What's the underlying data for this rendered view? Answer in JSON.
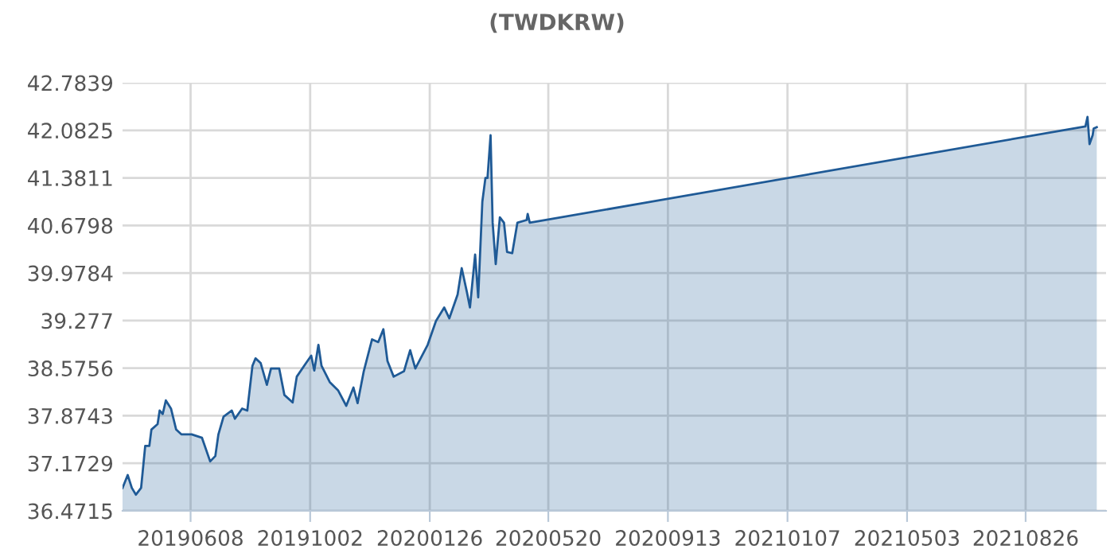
{
  "chart_data": {
    "type": "area",
    "title": "(TWDKRW)",
    "x": [
      "2019-04-03",
      "2019-04-08",
      "2019-04-12",
      "2019-04-16",
      "2019-04-21",
      "2019-04-25",
      "2019-04-29",
      "2019-05-01",
      "2019-05-07",
      "2019-05-09",
      "2019-05-12",
      "2019-05-15",
      "2019-05-20",
      "2019-05-25",
      "2019-05-30",
      "2019-06-09",
      "2019-06-19",
      "2019-06-27",
      "2019-07-02",
      "2019-07-05",
      "2019-07-10",
      "2019-07-18",
      "2019-07-21",
      "2019-07-28",
      "2019-08-02",
      "2019-08-07",
      "2019-08-10",
      "2019-08-15",
      "2019-08-21",
      "2019-08-25",
      "2019-09-02",
      "2019-09-07",
      "2019-09-15",
      "2019-09-19",
      "2019-09-28",
      "2019-10-03",
      "2019-10-06",
      "2019-10-10",
      "2019-10-13",
      "2019-10-21",
      "2019-10-29",
      "2019-11-06",
      "2019-11-13",
      "2019-11-17",
      "2019-11-23",
      "2019-12-01",
      "2019-12-07",
      "2019-12-12",
      "2019-12-16",
      "2019-12-22",
      "2020-01-01",
      "2020-01-07",
      "2020-01-12",
      "2020-01-24",
      "2020-02-01",
      "2020-02-09",
      "2020-02-14",
      "2020-02-22",
      "2020-02-26",
      "2020-03-02",
      "2020-03-05",
      "2020-03-10",
      "2020-03-13",
      "2020-03-17",
      "2020-03-20",
      "2020-03-22",
      "2020-03-25",
      "2020-03-27",
      "2020-03-30",
      "2020-04-03",
      "2020-04-07",
      "2020-04-10",
      "2020-04-15",
      "2020-04-20",
      "2020-04-29",
      "2020-04-30",
      "2020-05-02",
      "2021-10-23",
      "2021-10-25",
      "2021-10-27",
      "2021-10-30",
      "2021-10-31",
      "2021-11-03"
    ],
    "series": [
      {
        "color": "#1f5a96",
        "values": [
          36.81,
          37.0,
          36.81,
          36.71,
          36.81,
          37.43,
          37.43,
          37.67,
          37.75,
          37.95,
          37.9,
          38.1,
          37.98,
          37.67,
          37.6,
          37.6,
          37.55,
          37.2,
          37.28,
          37.6,
          37.86,
          37.95,
          37.83,
          37.98,
          37.95,
          38.61,
          38.72,
          38.65,
          38.33,
          38.57,
          38.57,
          38.18,
          38.07,
          38.45,
          38.65,
          38.76,
          38.54,
          38.92,
          38.61,
          38.37,
          38.25,
          38.02,
          38.29,
          38.06,
          38.53,
          39.0,
          38.96,
          39.15,
          38.68,
          38.45,
          38.53,
          38.84,
          38.57,
          38.92,
          39.27,
          39.47,
          39.31,
          39.66,
          40.05,
          39.7,
          39.47,
          40.25,
          39.62,
          41.03,
          41.38,
          41.38,
          42.01,
          40.72,
          40.11,
          40.8,
          40.72,
          40.29,
          40.27,
          40.72,
          40.76,
          40.85,
          40.72,
          42.14,
          42.28,
          41.88,
          42.01,
          42.11,
          42.13
        ]
      }
    ],
    "xlim": [
      "2019-04-03",
      "2021-11-12"
    ],
    "xticks": [
      {
        "value": "2019-06-08",
        "label": "20190608"
      },
      {
        "value": "2019-10-02",
        "label": "20191002"
      },
      {
        "value": "2020-01-26",
        "label": "20200126"
      },
      {
        "value": "2020-05-20",
        "label": "20200520"
      },
      {
        "value": "2020-09-13",
        "label": "20200913"
      },
      {
        "value": "2021-01-07",
        "label": "20210107"
      },
      {
        "value": "2021-05-03",
        "label": "20210503"
      },
      {
        "value": "2021-08-26",
        "label": "20210826"
      }
    ],
    "ylim": [
      36.4715,
      42.7839
    ],
    "yticks": [
      36.4715,
      37.1729,
      37.8743,
      38.5756,
      39.277,
      39.9784,
      40.6798,
      41.3811,
      42.0825,
      42.7839
    ],
    "grid": true
  }
}
